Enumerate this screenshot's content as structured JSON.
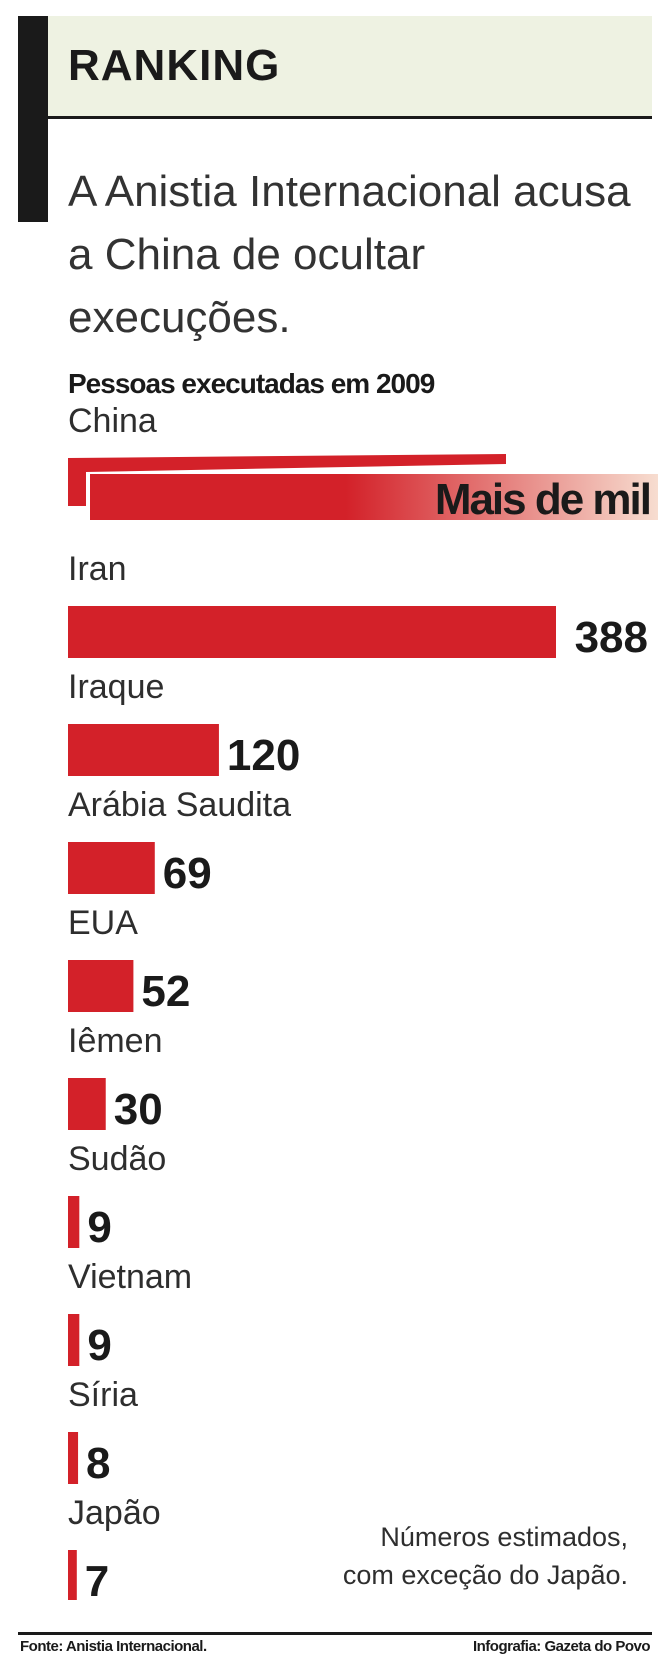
{
  "header": {
    "title": "RANKING",
    "lead": "A Anistia Internacional acusa a China de ocultar execuções."
  },
  "chart_data": {
    "type": "bar",
    "orientation": "horizontal",
    "title": "Pessoas executadas em 2009",
    "categories": [
      "China",
      "Iran",
      "Iraque",
      "Arábia Saudita",
      "EUA",
      "Iêmen",
      "Sudão",
      "Vietnam",
      "Síria",
      "Japão"
    ],
    "values": [
      null,
      388,
      120,
      69,
      52,
      30,
      9,
      9,
      8,
      7
    ],
    "value_labels": [
      "Mais de mil",
      "388",
      "120",
      "69",
      "52",
      "30",
      "9",
      "9",
      "8",
      "7"
    ],
    "bar_color": "#d32129",
    "grid": false,
    "legend": "none"
  },
  "note": {
    "line1": "Números estimados,",
    "line2": "com exceção do Japão."
  },
  "footer": {
    "source": "Fonte: Anistia Internacional.",
    "credit": "Infografia: Gazeta do Povo"
  }
}
